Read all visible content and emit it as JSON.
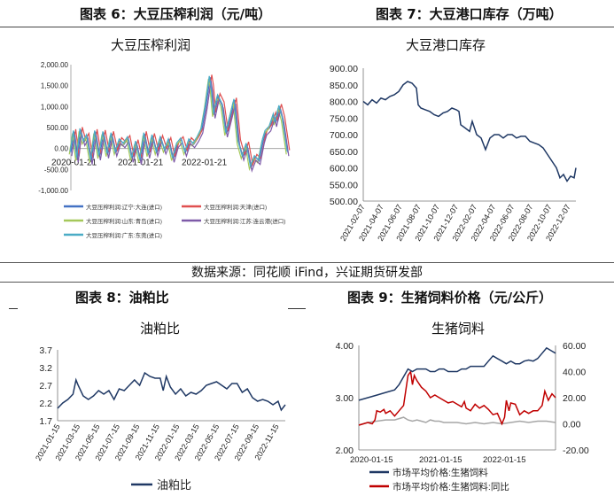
{
  "headers": {
    "c1": "图表 6：大豆压榨利润（元/吨）",
    "c2": "图表 7：大豆港口库存（万吨）",
    "c3": "图表 8：油粕比",
    "c4": "图表 9：生猪饲料价格（元/公斤）"
  },
  "source": "数据来源：同花顺 iFind，兴证期货研发部",
  "chart_data": [
    {
      "type": "line",
      "title": "大豆压榨利润",
      "x_ticks": [
        "2020-01-21",
        "2021-01-21",
        "2022-01-21"
      ],
      "ylim": [
        -1000,
        2000
      ],
      "y_ticks": [
        "-1,000.00",
        "-500.00",
        "0.00",
        "500.00",
        "1,000.00",
        "1,500.00",
        "2,000.00"
      ],
      "legend": [
        "大豆压榨利润:辽宁:大连(进口)",
        "大豆压榨利润:天津(进口)",
        "大豆压榨利润:山东:青岛(进口)",
        "大豆压榨利润:江苏:连云港(进口)",
        "大豆压榨利润:广东:东莞(进口)"
      ],
      "colors": [
        "#4472c4",
        "#e05050",
        "#a5c85a",
        "#7e5aa8",
        "#4bacc6"
      ],
      "base": [
        [
          0,
          -100
        ],
        [
          4,
          400
        ],
        [
          8,
          -250
        ],
        [
          12,
          450
        ],
        [
          16,
          150
        ],
        [
          20,
          300
        ],
        [
          25,
          -300
        ],
        [
          30,
          400
        ],
        [
          35,
          -200
        ],
        [
          40,
          380
        ],
        [
          45,
          -150
        ],
        [
          50,
          350
        ],
        [
          55,
          -100
        ],
        [
          60,
          200
        ],
        [
          65,
          100
        ],
        [
          70,
          250
        ],
        [
          75,
          -250
        ],
        [
          80,
          150
        ],
        [
          85,
          -300
        ],
        [
          90,
          350
        ],
        [
          95,
          -150
        ],
        [
          100,
          300
        ],
        [
          105,
          -100
        ],
        [
          110,
          250
        ],
        [
          115,
          -50
        ],
        [
          120,
          200
        ],
        [
          125,
          -250
        ],
        [
          130,
          100
        ],
        [
          135,
          220
        ],
        [
          140,
          -100
        ],
        [
          145,
          200
        ],
        [
          150,
          100
        ],
        [
          155,
          250
        ],
        [
          160,
          450
        ],
        [
          165,
          1000
        ],
        [
          170,
          1700
        ],
        [
          172,
          1450
        ],
        [
          175,
          800
        ],
        [
          180,
          1250
        ],
        [
          185,
          1050
        ],
        [
          190,
          350
        ],
        [
          195,
          750
        ],
        [
          200,
          1150
        ],
        [
          205,
          150
        ],
        [
          210,
          -200
        ],
        [
          215,
          100
        ],
        [
          220,
          -450
        ],
        [
          225,
          -200
        ],
        [
          230,
          -300
        ],
        [
          235,
          200
        ],
        [
          238,
          400
        ],
        [
          243,
          500
        ],
        [
          248,
          800
        ],
        [
          250,
          600
        ],
        [
          255,
          1000
        ],
        [
          259,
          700
        ],
        [
          262,
          300
        ],
        [
          265,
          -100
        ]
      ]
    },
    {
      "type": "line",
      "title": "大豆港口库存",
      "ylim": [
        500,
        900
      ],
      "y_ticks": [
        "500.00",
        "550.00",
        "600.00",
        "650.00",
        "700.00",
        "750.00",
        "800.00",
        "850.00",
        "900.00"
      ],
      "x_ticks": [
        "2021-02-07",
        "2021-04-07",
        "2021-06-07",
        "2021-08-07",
        "2021-10-07",
        "2021-12-07",
        "2022-02-07",
        "2022-04-07",
        "2022-06-07",
        "2022-08-07",
        "2022-10-07",
        "2022-12-07"
      ],
      "colors": [
        "#1f3864"
      ],
      "values": [
        [
          0,
          800
        ],
        [
          5,
          790
        ],
        [
          10,
          805
        ],
        [
          15,
          795
        ],
        [
          20,
          810
        ],
        [
          25,
          805
        ],
        [
          30,
          815
        ],
        [
          35,
          820
        ],
        [
          40,
          830
        ],
        [
          45,
          850
        ],
        [
          50,
          860
        ],
        [
          55,
          855
        ],
        [
          60,
          840
        ],
        [
          62,
          790
        ],
        [
          65,
          780
        ],
        [
          70,
          775
        ],
        [
          75,
          770
        ],
        [
          80,
          760
        ],
        [
          85,
          755
        ],
        [
          90,
          765
        ],
        [
          95,
          770
        ],
        [
          100,
          780
        ],
        [
          105,
          775
        ],
        [
          108,
          770
        ],
        [
          110,
          730
        ],
        [
          115,
          720
        ],
        [
          120,
          710
        ],
        [
          123,
          740
        ],
        [
          128,
          700
        ],
        [
          133,
          690
        ],
        [
          138,
          655
        ],
        [
          143,
          690
        ],
        [
          148,
          700
        ],
        [
          153,
          700
        ],
        [
          158,
          690
        ],
        [
          163,
          700
        ],
        [
          168,
          700
        ],
        [
          173,
          690
        ],
        [
          178,
          695
        ],
        [
          183,
          695
        ],
        [
          188,
          680
        ],
        [
          193,
          675
        ],
        [
          198,
          670
        ],
        [
          203,
          660
        ],
        [
          208,
          640
        ],
        [
          213,
          620
        ],
        [
          218,
          600
        ],
        [
          222,
          570
        ],
        [
          226,
          580
        ],
        [
          230,
          560
        ],
        [
          234,
          575
        ],
        [
          238,
          570
        ],
        [
          240,
          600
        ]
      ]
    },
    {
      "type": "line",
      "title": "油粕比",
      "ylim": [
        1.7,
        3.7
      ],
      "y_ticks": [
        "1.7",
        "2.2",
        "2.7",
        "3.2",
        "3.7"
      ],
      "x_ticks": [
        "2021-01-15",
        "2021-03-15",
        "2021-05-15",
        "2021-07-15",
        "2021-09-15",
        "2021-11-15",
        "2022-01-15",
        "2022-03-15",
        "2022-05-15",
        "2022-07-15",
        "2022-09-15",
        "2022-11-15"
      ],
      "legend": [
        "油粕比"
      ],
      "colors": [
        "#1f3864"
      ],
      "values": [
        [
          0,
          2.05
        ],
        [
          5,
          2.2
        ],
        [
          10,
          2.3
        ],
        [
          15,
          2.45
        ],
        [
          18,
          2.85
        ],
        [
          20,
          2.7
        ],
        [
          25,
          2.4
        ],
        [
          30,
          2.3
        ],
        [
          35,
          2.4
        ],
        [
          40,
          2.55
        ],
        [
          45,
          2.45
        ],
        [
          50,
          2.55
        ],
        [
          55,
          2.3
        ],
        [
          60,
          2.6
        ],
        [
          65,
          2.55
        ],
        [
          70,
          2.7
        ],
        [
          75,
          2.85
        ],
        [
          80,
          2.7
        ],
        [
          85,
          3.05
        ],
        [
          90,
          2.95
        ],
        [
          95,
          2.9
        ],
        [
          100,
          2.9
        ],
        [
          103,
          2.55
        ],
        [
          106,
          2.95
        ],
        [
          110,
          2.65
        ],
        [
          115,
          2.45
        ],
        [
          120,
          2.6
        ],
        [
          125,
          2.4
        ],
        [
          130,
          2.5
        ],
        [
          135,
          2.45
        ],
        [
          140,
          2.55
        ],
        [
          145,
          2.7
        ],
        [
          150,
          2.75
        ],
        [
          155,
          2.8
        ],
        [
          160,
          2.7
        ],
        [
          165,
          2.6
        ],
        [
          170,
          2.75
        ],
        [
          175,
          2.75
        ],
        [
          180,
          2.5
        ],
        [
          185,
          2.6
        ],
        [
          190,
          2.35
        ],
        [
          195,
          2.25
        ],
        [
          200,
          2.3
        ],
        [
          205,
          2.25
        ],
        [
          210,
          2.15
        ],
        [
          215,
          2.25
        ],
        [
          218,
          2.0
        ],
        [
          222,
          2.15
        ]
      ]
    },
    {
      "type": "line",
      "title": "生猪饲料",
      "x_ticks": [
        "2020-01-15",
        "2021-01-15",
        "2022-01-15"
      ],
      "ylim": [
        2,
        4
      ],
      "y_ticks": [
        "2.00",
        "3.00",
        "4.00"
      ],
      "y2lim": [
        -20,
        60
      ],
      "y2_ticks": [
        "-20.00",
        "0.00",
        "20.00",
        "40.00",
        "60.00"
      ],
      "legend": [
        "市场平均价格:生猪饲料",
        "市场平均价格:生猪饲料:同比"
      ],
      "colors": [
        "#1f3864",
        "#c00000",
        "#a6a6a6"
      ],
      "price": [
        [
          0,
          2.95
        ],
        [
          10,
          3.0
        ],
        [
          20,
          3.05
        ],
        [
          30,
          3.1
        ],
        [
          40,
          3.15
        ],
        [
          45,
          3.25
        ],
        [
          50,
          3.4
        ],
        [
          55,
          3.55
        ],
        [
          60,
          3.5
        ],
        [
          65,
          3.55
        ],
        [
          70,
          3.55
        ],
        [
          75,
          3.55
        ],
        [
          80,
          3.5
        ],
        [
          85,
          3.5
        ],
        [
          90,
          3.55
        ],
        [
          95,
          3.55
        ],
        [
          100,
          3.5
        ],
        [
          105,
          3.5
        ],
        [
          110,
          3.5
        ],
        [
          115,
          3.55
        ],
        [
          120,
          3.55
        ],
        [
          125,
          3.6
        ],
        [
          130,
          3.6
        ],
        [
          135,
          3.6
        ],
        [
          140,
          3.6
        ],
        [
          145,
          3.7
        ],
        [
          150,
          3.8
        ],
        [
          155,
          3.75
        ],
        [
          160,
          3.7
        ],
        [
          165,
          3.65
        ],
        [
          170,
          3.7
        ],
        [
          175,
          3.65
        ],
        [
          180,
          3.65
        ],
        [
          185,
          3.7
        ],
        [
          190,
          3.72
        ],
        [
          195,
          3.7
        ],
        [
          200,
          3.75
        ],
        [
          205,
          3.85
        ],
        [
          210,
          3.95
        ],
        [
          215,
          3.9
        ],
        [
          220,
          3.85
        ]
      ],
      "yoy": [
        [
          0,
          -1
        ],
        [
          10,
          1
        ],
        [
          15,
          0
        ],
        [
          18,
          3
        ],
        [
          20,
          10
        ],
        [
          24,
          9
        ],
        [
          28,
          11
        ],
        [
          30,
          8
        ],
        [
          35,
          10
        ],
        [
          40,
          6
        ],
        [
          45,
          10
        ],
        [
          50,
          14
        ],
        [
          55,
          37
        ],
        [
          58,
          40
        ],
        [
          60,
          30
        ],
        [
          62,
          37
        ],
        [
          65,
          33
        ],
        [
          70,
          28
        ],
        [
          75,
          25
        ],
        [
          80,
          20
        ],
        [
          85,
          22
        ],
        [
          90,
          20
        ],
        [
          95,
          18
        ],
        [
          100,
          16
        ],
        [
          105,
          17
        ],
        [
          110,
          15
        ],
        [
          115,
          13
        ],
        [
          118,
          17
        ],
        [
          120,
          12
        ],
        [
          125,
          10
        ],
        [
          130,
          15
        ],
        [
          135,
          12
        ],
        [
          140,
          14
        ],
        [
          145,
          11
        ],
        [
          150,
          7
        ],
        [
          155,
          8
        ],
        [
          160,
          0
        ],
        [
          163,
          5
        ],
        [
          165,
          18
        ],
        [
          168,
          10
        ],
        [
          170,
          16
        ],
        [
          175,
          15
        ],
        [
          180,
          7
        ],
        [
          185,
          10
        ],
        [
          190,
          8
        ],
        [
          195,
          10
        ],
        [
          200,
          10
        ],
        [
          205,
          14
        ],
        [
          208,
          25
        ],
        [
          212,
          18
        ],
        [
          216,
          23
        ],
        [
          220,
          20
        ]
      ],
      "gray": [
        [
          0,
          -1
        ],
        [
          10,
          1
        ],
        [
          20,
          2
        ],
        [
          30,
          3
        ],
        [
          40,
          3
        ],
        [
          50,
          5
        ],
        [
          55,
          3
        ],
        [
          60,
          2
        ],
        [
          65,
          3
        ],
        [
          70,
          2
        ],
        [
          75,
          1
        ],
        [
          80,
          3
        ],
        [
          85,
          2
        ],
        [
          90,
          2
        ],
        [
          95,
          1
        ],
        [
          100,
          1
        ],
        [
          110,
          1
        ],
        [
          120,
          0
        ],
        [
          130,
          1
        ],
        [
          140,
          0
        ],
        [
          150,
          1
        ],
        [
          160,
          0
        ],
        [
          170,
          1
        ],
        [
          180,
          2
        ],
        [
          190,
          1
        ],
        [
          200,
          2
        ],
        [
          210,
          2
        ],
        [
          220,
          1
        ]
      ]
    }
  ]
}
